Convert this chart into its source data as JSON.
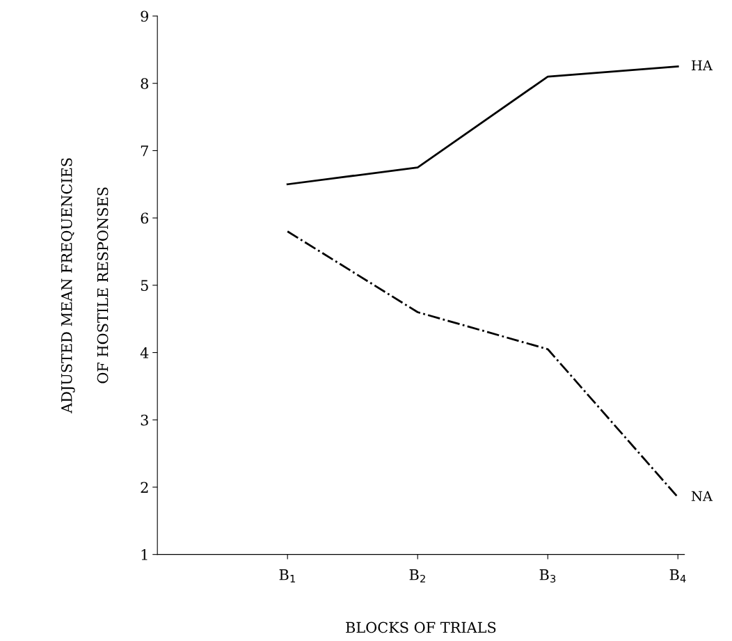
{
  "chart_data": {
    "type": "line",
    "xlabel": "BLOCKS OF TRIALS",
    "ylabel": "ADJUSTED MEAN FREQUENCIES\nOF HOSTILE RESPONSES",
    "categories": [
      null,
      "B$_{1}$",
      "B$_{2}$",
      "B$_{3}$",
      "B$_{4}$"
    ],
    "series": [
      {
        "name": "HA",
        "color": "#000000",
        "line_style": "solid",
        "values": [
          null,
          6.5,
          6.75,
          8.1,
          8.25
        ]
      },
      {
        "name": "NA",
        "color": "#000000",
        "line_style": "dashdot",
        "values": [
          null,
          5.8,
          4.6,
          4.05,
          1.85
        ]
      }
    ],
    "ylim": [
      1,
      9
    ],
    "yticks": [
      1,
      2,
      3,
      4,
      5,
      6,
      7,
      8,
      9
    ],
    "grid": false,
    "legend": false,
    "marker": "none"
  }
}
